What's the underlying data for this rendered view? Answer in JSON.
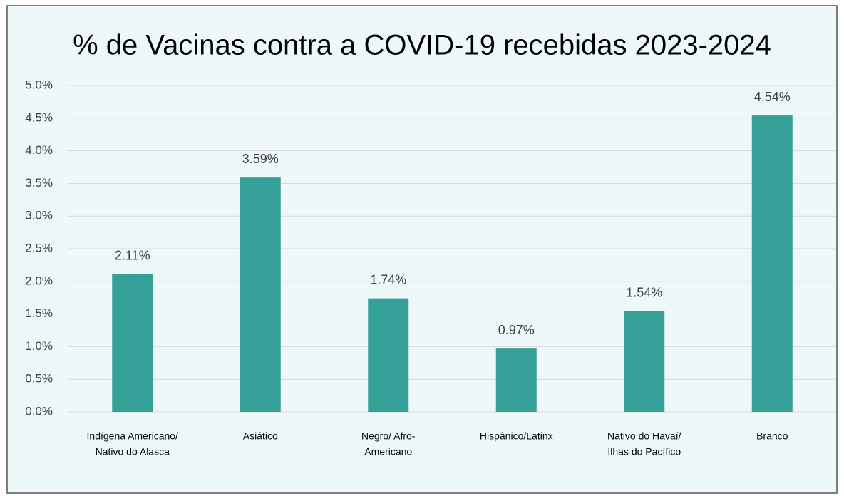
{
  "chart_data": {
    "type": "bar",
    "title": "% de Vacinas contra a COVID-19 recebidas 2023-2024",
    "categories": [
      [
        "Indígena Americano/",
        "Nativo do Alasca"
      ],
      [
        "Asiático"
      ],
      [
        "Negro/ Afro-",
        "Americano"
      ],
      [
        "Hispânico/Latinx"
      ],
      [
        "Nativo do Havaí/",
        "Ilhas do Pacífico"
      ],
      [
        "Branco"
      ]
    ],
    "values": [
      2.11,
      3.59,
      1.74,
      0.97,
      1.54,
      4.54
    ],
    "value_labels": [
      "2.11%",
      "3.59%",
      "1.74%",
      "0.97%",
      "1.54%",
      "4.54%"
    ],
    "color": "#35a097",
    "ylim": [
      0,
      5
    ],
    "yticks": [
      {
        "value": 0,
        "label": "0.0%"
      },
      {
        "value": 0.5,
        "label": "0.5%"
      },
      {
        "value": 1,
        "label": "1.0%"
      },
      {
        "value": 1.5,
        "label": "1.5%"
      },
      {
        "value": 2,
        "label": "2.0%"
      },
      {
        "value": 2.5,
        "label": "2.5%"
      },
      {
        "value": 3,
        "label": "3.0%"
      },
      {
        "value": 3.5,
        "label": "3.5%"
      },
      {
        "value": 4,
        "label": "4.0%"
      },
      {
        "value": 4.5,
        "label": "4.5%"
      },
      {
        "value": 5,
        "label": "5.0%"
      }
    ],
    "grid": true
  }
}
